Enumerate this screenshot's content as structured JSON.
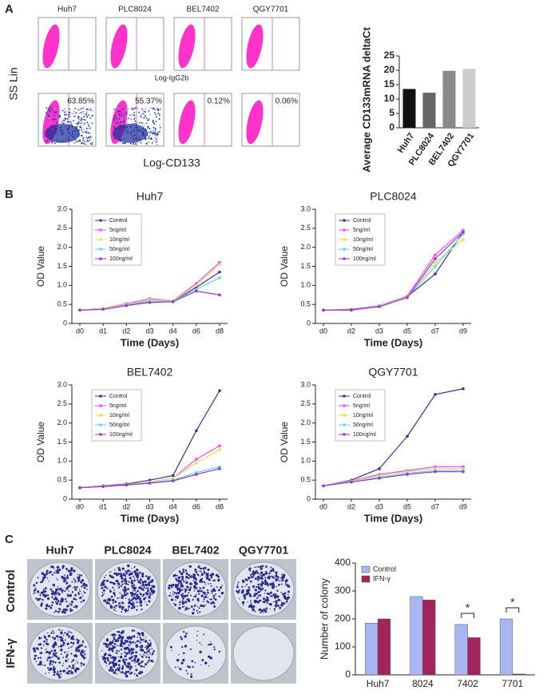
{
  "panel_labels": [
    "A",
    "B",
    "C"
  ],
  "flow_cytometry": {
    "cell_lines": [
      "Huh7",
      "PLC8024",
      "BEL7402",
      "QGY7701"
    ],
    "y_label": "SS Lin",
    "x_label_top": "Log-IgG2b",
    "x_label_bottom": "Log-CD133",
    "percentages": [
      "63.85%",
      "55.37%",
      "0.12%",
      "0.06%"
    ]
  },
  "colony_assay": {
    "cell_lines": [
      "Huh7",
      "PLC8024",
      "BEL7402",
      "QGY7701"
    ],
    "rows": [
      "Control",
      "IFN-γ"
    ]
  },
  "chart_data": [
    {
      "type": "bar",
      "y_label": "Average CD133mRNA deltaCt",
      "categories": [
        "Huh7",
        "PLC8024",
        "BEL7402",
        "QGY7701"
      ],
      "values": [
        13.5,
        12.2,
        19.8,
        20.5
      ],
      "colors": [
        "#111111",
        "#666666",
        "#8a8a8a",
        "#cccccc"
      ],
      "ylim": [
        0,
        25
      ],
      "yticks": [
        0,
        5,
        10,
        15,
        20,
        25
      ]
    },
    {
      "type": "line",
      "title": "Huh7",
      "x_label": "Time (Days)",
      "y_label": "OD Value",
      "categories": [
        "d0",
        "d1",
        "d2",
        "d3",
        "d4",
        "d6",
        "d8"
      ],
      "ylim": [
        0,
        3
      ],
      "yticks": [
        0,
        0.5,
        {
          "value": 1,
          "label": "1.0"
        },
        1.5,
        {
          "value": 2,
          "label": "2.0"
        },
        2.5,
        {
          "value": 3,
          "label": "3.0"
        }
      ],
      "legend": "upper left",
      "series": [
        {
          "name": "Control",
          "color": "#333399",
          "values": [
            0.35,
            0.38,
            0.5,
            0.58,
            0.58,
            0.95,
            1.35
          ]
        },
        {
          "name": "5ng/ml",
          "color": "#ff44ff",
          "values": [
            0.35,
            0.4,
            0.52,
            0.65,
            0.6,
            1.05,
            1.6
          ]
        },
        {
          "name": "10ng/ml",
          "color": "#e0e050",
          "values": [
            0.35,
            0.4,
            0.5,
            0.62,
            0.6,
            1.0,
            1.55
          ]
        },
        {
          "name": "50ng/ml",
          "color": "#55dddd",
          "values": [
            0.35,
            0.38,
            0.48,
            0.58,
            0.58,
            0.9,
            1.2
          ]
        },
        {
          "name": "100ng/ml",
          "color": "#9933cc",
          "values": [
            0.35,
            0.37,
            0.47,
            0.55,
            0.57,
            0.85,
            0.75
          ]
        }
      ]
    },
    {
      "type": "line",
      "title": "PLC8024",
      "x_label": "Time (Days)",
      "y_label": "OD Value",
      "categories": [
        "d0",
        "d2",
        "d3",
        "d5",
        "d7",
        "d9"
      ],
      "ylim": [
        0,
        3
      ],
      "yticks": [
        0,
        0.5,
        {
          "value": 1,
          "label": "1.0"
        },
        1.5,
        {
          "value": 2,
          "label": "2.0"
        },
        2.5,
        {
          "value": 3,
          "label": "3.0"
        }
      ],
      "legend": "upper left",
      "series": [
        {
          "name": "Control",
          "color": "#333399",
          "values": [
            0.35,
            0.35,
            0.45,
            0.7,
            1.3,
            2.4
          ]
        },
        {
          "name": "5ng/ml",
          "color": "#ff44ff",
          "values": [
            0.35,
            0.37,
            0.47,
            0.72,
            1.8,
            2.45
          ]
        },
        {
          "name": "10ng/ml",
          "color": "#e0e050",
          "values": [
            0.35,
            0.36,
            0.46,
            0.7,
            1.6,
            2.2
          ]
        },
        {
          "name": "50ng/ml",
          "color": "#55dddd",
          "values": [
            0.35,
            0.36,
            0.45,
            0.68,
            1.5,
            2.35
          ]
        },
        {
          "name": "100ng/ml",
          "color": "#9933cc",
          "values": [
            0.35,
            0.36,
            0.44,
            0.68,
            1.7,
            2.4
          ]
        }
      ]
    },
    {
      "type": "line",
      "title": "BEL7402",
      "x_label": "Time (Days)",
      "y_label": "OD Value",
      "categories": [
        "d0",
        "d1",
        "d2",
        "d3",
        "d4",
        "d6",
        "d8"
      ],
      "ylim": [
        0,
        3
      ],
      "yticks": [
        0,
        0.5,
        {
          "value": 1,
          "label": "1.0"
        },
        1.5,
        {
          "value": 2,
          "label": "2.0"
        },
        2.5,
        {
          "value": 3,
          "label": "3.0"
        }
      ],
      "legend": "upper left",
      "series": [
        {
          "name": "Control",
          "color": "#333399",
          "values": [
            0.3,
            0.35,
            0.4,
            0.5,
            0.62,
            1.8,
            2.85
          ]
        },
        {
          "name": "5ng/ml",
          "color": "#ff44ff",
          "values": [
            0.3,
            0.34,
            0.38,
            0.45,
            0.55,
            1.05,
            1.4
          ]
        },
        {
          "name": "10ng/ml",
          "color": "#e0e050",
          "values": [
            0.3,
            0.34,
            0.38,
            0.45,
            0.55,
            0.95,
            1.3
          ]
        },
        {
          "name": "50ng/ml",
          "color": "#55dddd",
          "values": [
            0.3,
            0.33,
            0.37,
            0.43,
            0.5,
            0.7,
            0.85
          ]
        },
        {
          "name": "100ng/ml",
          "color": "#9933cc",
          "values": [
            0.3,
            0.33,
            0.37,
            0.42,
            0.48,
            0.65,
            0.8
          ]
        }
      ]
    },
    {
      "type": "line",
      "title": "QGY7701",
      "x_label": "Time (Days)",
      "y_label": "OD Value",
      "categories": [
        "d0",
        "d2",
        "d3",
        "d5",
        "d7",
        "d9"
      ],
      "ylim": [
        0,
        3
      ],
      "yticks": [
        0,
        0.5,
        {
          "value": 1,
          "label": "1.0"
        },
        1.5,
        {
          "value": 2,
          "label": "2.0"
        },
        2.5,
        {
          "value": 3,
          "label": "3.0"
        }
      ],
      "legend": "upper left",
      "series": [
        {
          "name": "Control",
          "color": "#333399",
          "values": [
            0.35,
            0.5,
            0.8,
            1.65,
            2.75,
            2.9
          ]
        },
        {
          "name": "5ng/ml",
          "color": "#ff44ff",
          "values": [
            0.35,
            0.48,
            0.65,
            0.75,
            0.85,
            0.85
          ]
        },
        {
          "name": "10ng/ml",
          "color": "#e0e050",
          "values": [
            0.35,
            0.47,
            0.62,
            0.72,
            0.8,
            0.8
          ]
        },
        {
          "name": "50ng/ml",
          "color": "#55dddd",
          "values": [
            0.35,
            0.45,
            0.58,
            0.68,
            0.75,
            0.75
          ]
        },
        {
          "name": "100ng/ml",
          "color": "#9933cc",
          "values": [
            0.35,
            0.45,
            0.55,
            0.65,
            0.72,
            0.72
          ]
        }
      ]
    },
    {
      "type": "grouped_bar",
      "y_label": "Number of colony",
      "categories": [
        "Huh7",
        "8024",
        "7402",
        "7701"
      ],
      "ylim": [
        0,
        400
      ],
      "yticks": [
        0,
        100,
        200,
        300,
        400
      ],
      "legend": "upper left",
      "series": [
        {
          "name": "Control",
          "color": "#a9b6f2",
          "values": [
            185,
            280,
            180,
            200
          ]
        },
        {
          "name": "IFN-γ",
          "color": "#a3245c",
          "values": [
            200,
            268,
            133,
            3
          ]
        }
      ],
      "annotations": [
        {
          "text": "*",
          "category": "7402"
        },
        {
          "text": "*",
          "category": "7701"
        }
      ]
    }
  ]
}
